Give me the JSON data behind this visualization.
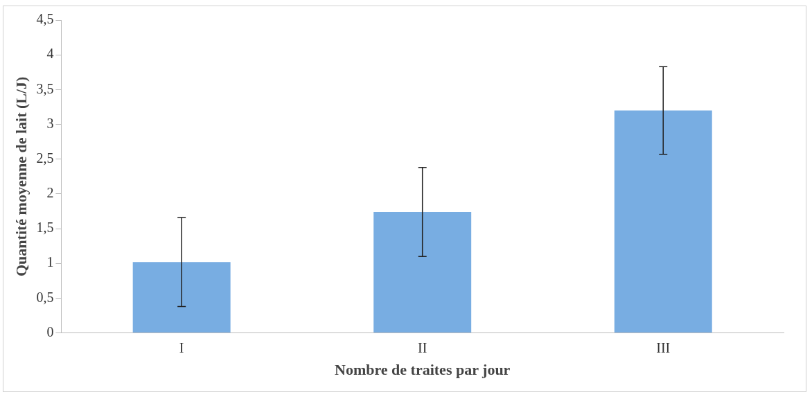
{
  "chart_data": {
    "type": "bar",
    "xlabel": "Nombre de traites par jour",
    "ylabel": "Quantité moyenne de lait (L/J)",
    "categories": [
      "I",
      "II",
      "III"
    ],
    "series": [
      {
        "color": "#78ade2",
        "values": [
          1.02,
          1.74,
          3.2
        ],
        "errors": [
          0.64,
          0.64,
          0.63
        ]
      }
    ],
    "ylim": [
      0,
      4.5
    ],
    "yticks": [
      0,
      {
        "value": 0.5,
        "label": "0,5"
      },
      1,
      {
        "value": 1.5,
        "label": "1,5"
      },
      2,
      {
        "value": 2.5,
        "label": "2,5"
      },
      3,
      {
        "value": 3.5,
        "label": "3,5"
      },
      4,
      {
        "value": 4.5,
        "label": "4,5"
      }
    ],
    "grid": false,
    "legend": false
  }
}
